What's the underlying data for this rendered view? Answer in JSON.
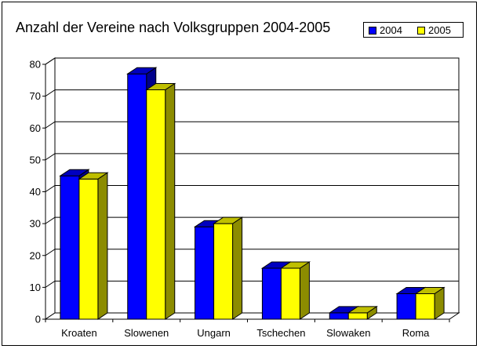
{
  "chart_data": {
    "type": "bar",
    "title": "Anzahl der Vereine nach Volksgruppen 2004-2005",
    "categories": [
      "Kroaten",
      "Slowenen",
      "Ungarn",
      "Tschechen",
      "Slowaken",
      "Roma"
    ],
    "series": [
      {
        "name": "2004",
        "values": [
          45,
          77,
          29,
          16,
          2,
          8
        ],
        "color": "#0000ff"
      },
      {
        "name": "2005",
        "values": [
          44,
          72,
          30,
          16,
          2,
          8
        ],
        "color": "#ffff00"
      }
    ],
    "yticks": [
      0,
      10,
      20,
      30,
      40,
      50,
      60,
      70,
      80
    ],
    "ylim": [
      0,
      80
    ],
    "grid": true,
    "legend": "top-right",
    "style": "3d-column"
  }
}
